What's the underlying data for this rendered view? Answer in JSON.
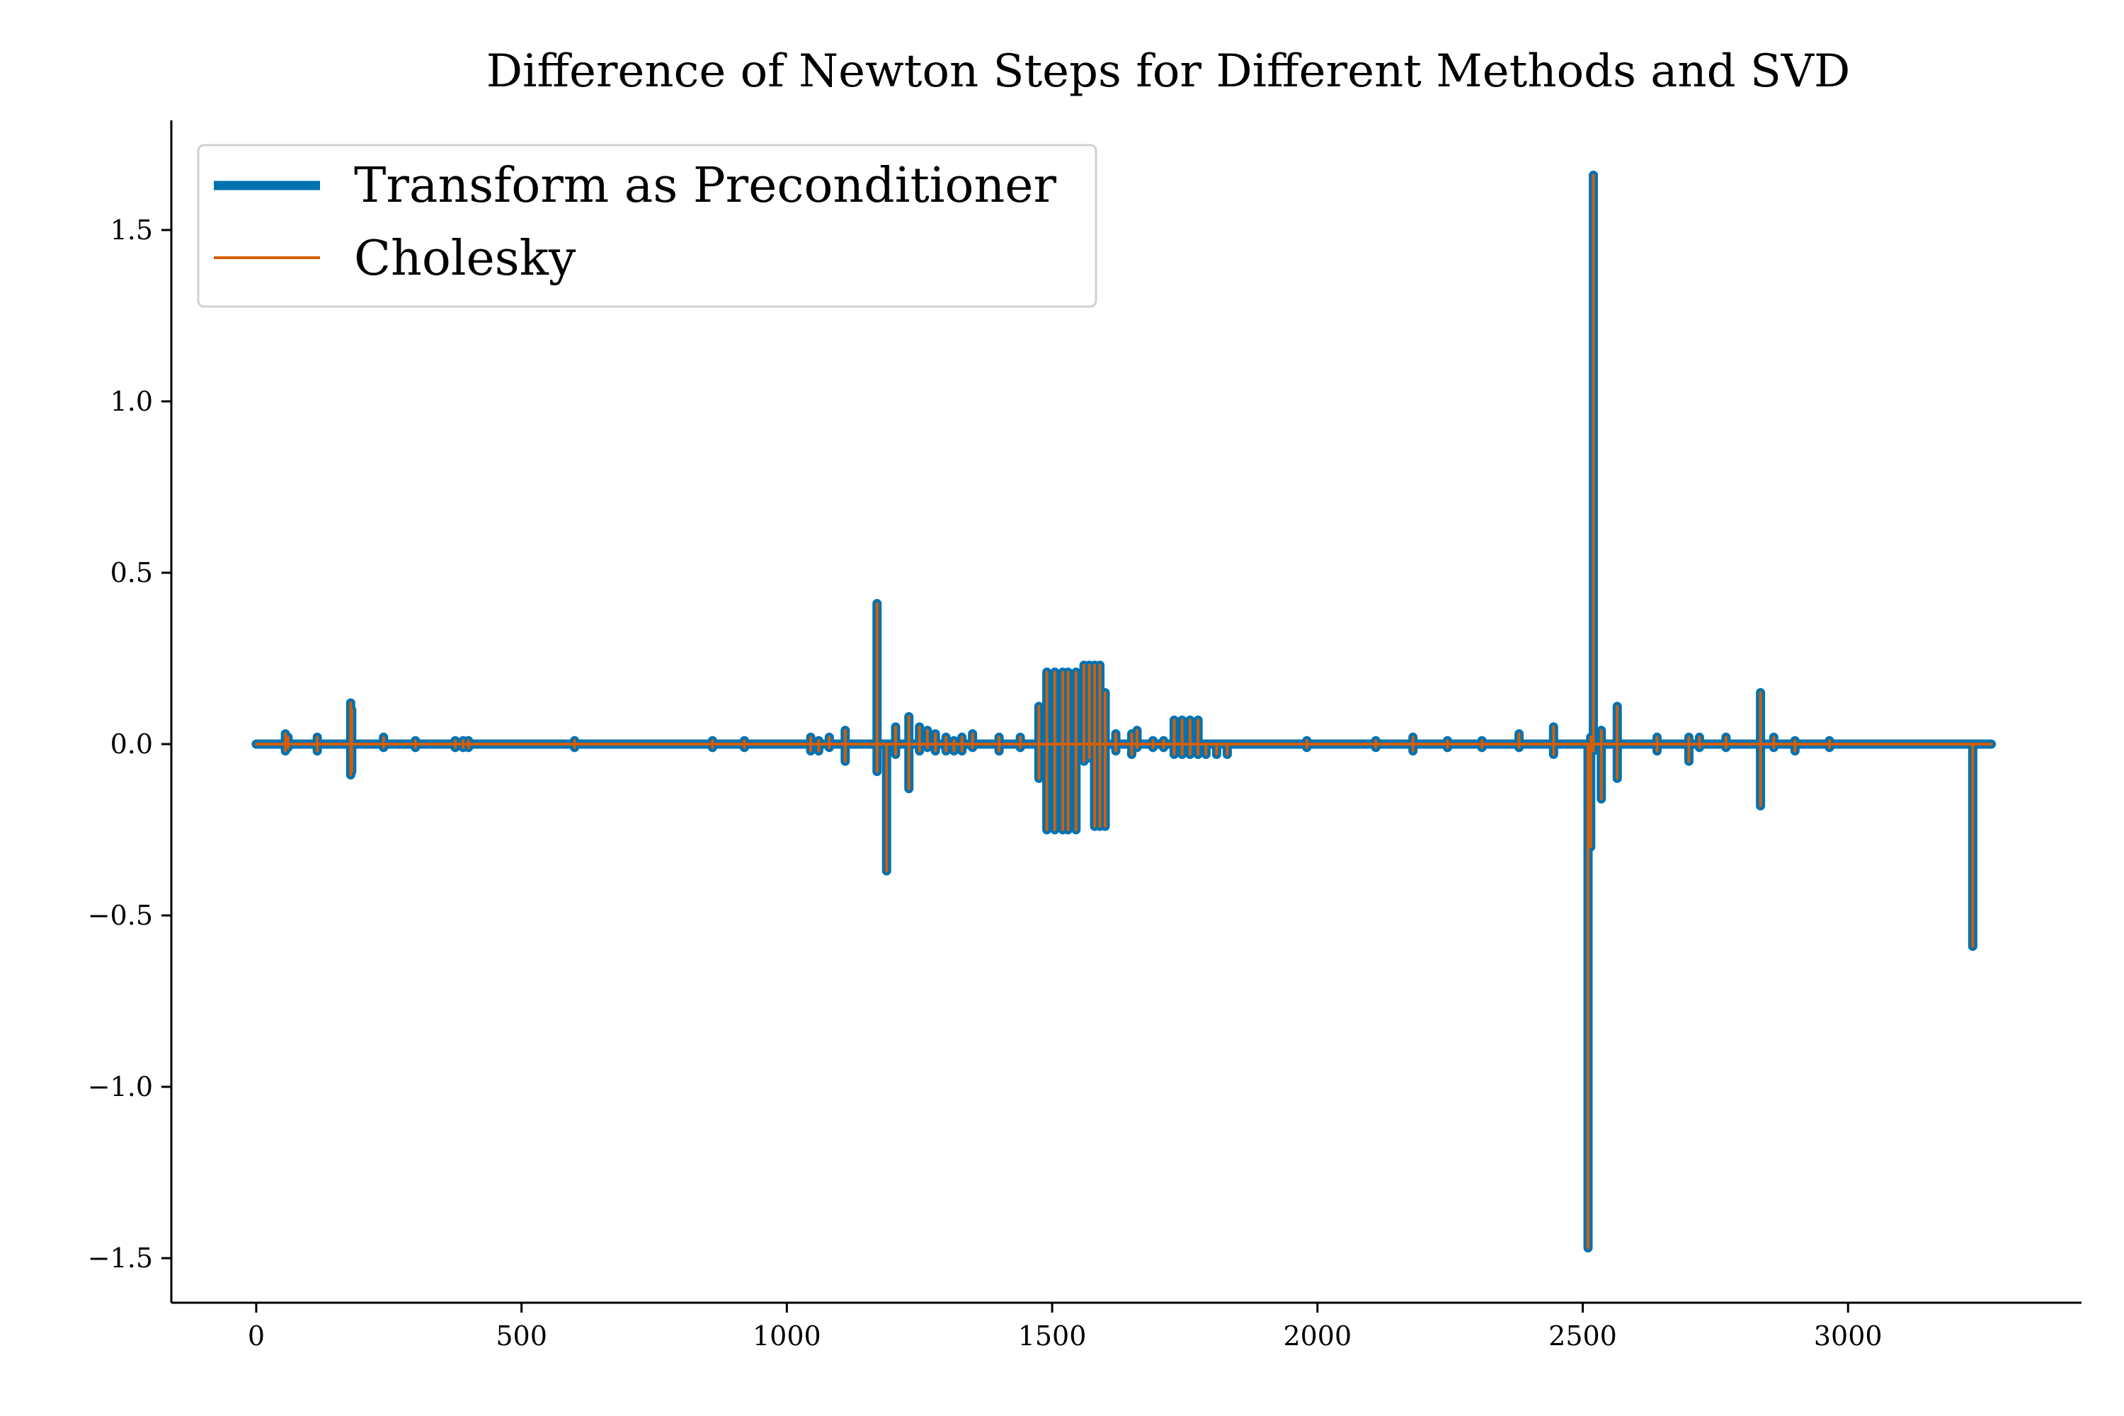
{
  "chart_data": {
    "type": "line",
    "title": "Difference of Newton Steps for Different Methods and SVD",
    "xlabel": "",
    "ylabel": "",
    "xlim": [
      -160,
      3440
    ],
    "ylim": [
      -1.63,
      1.82
    ],
    "xticks": [
      0,
      500,
      1000,
      1500,
      2000,
      2500,
      3000
    ],
    "xtick_labels": [
      "0",
      "500",
      "1000",
      "1500",
      "2000",
      "2500",
      "3000"
    ],
    "yticks": [
      -1.5,
      -1.0,
      -0.5,
      0.0,
      0.5,
      1.0,
      1.5
    ],
    "ytick_labels": [
      "−1.5",
      "−1.0",
      "−0.5",
      "0.0",
      "0.5",
      "1.0",
      "1.5"
    ],
    "grid": false,
    "legend_position": "top-left",
    "x_range": [
      0,
      3270
    ],
    "spikes": [
      [
        55,
        0.03,
        -0.02
      ],
      [
        60,
        0.02,
        -0.01
      ],
      [
        115,
        0.02,
        -0.02
      ],
      [
        178,
        0.12,
        -0.09
      ],
      [
        180,
        0.1,
        -0.08
      ],
      [
        240,
        0.02,
        -0.01
      ],
      [
        300,
        0.01,
        -0.01
      ],
      [
        375,
        0.01,
        -0.01
      ],
      [
        390,
        0.01,
        -0.01
      ],
      [
        400,
        0.01,
        -0.01
      ],
      [
        600,
        0.01,
        -0.01
      ],
      [
        860,
        0.01,
        -0.01
      ],
      [
        920,
        0.01,
        -0.01
      ],
      [
        1045,
        0.02,
        -0.02
      ],
      [
        1060,
        0.01,
        -0.02
      ],
      [
        1080,
        0.02,
        -0.01
      ],
      [
        1110,
        0.04,
        -0.05
      ],
      [
        1170,
        0.41,
        -0.08
      ],
      [
        1188,
        0.0,
        -0.37
      ],
      [
        1205,
        0.05,
        -0.03
      ],
      [
        1230,
        0.08,
        -0.13
      ],
      [
        1250,
        0.05,
        -0.02
      ],
      [
        1265,
        0.04,
        -0.01
      ],
      [
        1280,
        0.03,
        -0.02
      ],
      [
        1300,
        0.02,
        -0.02
      ],
      [
        1315,
        0.01,
        -0.02
      ],
      [
        1330,
        0.02,
        -0.02
      ],
      [
        1350,
        0.03,
        -0.01
      ],
      [
        1400,
        0.02,
        -0.02
      ],
      [
        1440,
        0.02,
        -0.01
      ],
      [
        1475,
        0.11,
        -0.1
      ],
      [
        1490,
        0.21,
        -0.25
      ],
      [
        1505,
        0.21,
        -0.25
      ],
      [
        1520,
        0.21,
        -0.25
      ],
      [
        1530,
        0.21,
        -0.25
      ],
      [
        1545,
        0.21,
        -0.25
      ],
      [
        1560,
        0.23,
        -0.05
      ],
      [
        1570,
        0.23,
        -0.04
      ],
      [
        1580,
        0.23,
        -0.24
      ],
      [
        1590,
        0.23,
        -0.24
      ],
      [
        1600,
        0.15,
        -0.24
      ],
      [
        1620,
        0.03,
        -0.02
      ],
      [
        1650,
        0.03,
        -0.03
      ],
      [
        1660,
        0.04,
        -0.01
      ],
      [
        1690,
        0.01,
        -0.01
      ],
      [
        1710,
        0.01,
        -0.01
      ],
      [
        1730,
        0.07,
        -0.03
      ],
      [
        1745,
        0.07,
        -0.03
      ],
      [
        1760,
        0.07,
        -0.03
      ],
      [
        1775,
        0.07,
        -0.03
      ],
      [
        1790,
        0.0,
        -0.03
      ],
      [
        1810,
        0.0,
        -0.03
      ],
      [
        1830,
        0.0,
        -0.03
      ],
      [
        1980,
        0.01,
        -0.01
      ],
      [
        2110,
        0.01,
        -0.01
      ],
      [
        2180,
        0.02,
        -0.02
      ],
      [
        2245,
        0.01,
        -0.01
      ],
      [
        2310,
        0.01,
        -0.01
      ],
      [
        2380,
        0.03,
        -0.01
      ],
      [
        2445,
        0.05,
        -0.03
      ],
      [
        2510,
        0.0,
        -1.47
      ],
      [
        2515,
        0.02,
        -0.3
      ],
      [
        2520,
        1.66,
        -0.02
      ],
      [
        2535,
        0.04,
        -0.16
      ],
      [
        2565,
        0.11,
        -0.1
      ],
      [
        2640,
        0.02,
        -0.02
      ],
      [
        2700,
        0.02,
        -0.05
      ],
      [
        2720,
        0.02,
        -0.01
      ],
      [
        2770,
        0.02,
        -0.01
      ],
      [
        2835,
        0.15,
        -0.18
      ],
      [
        2860,
        0.02,
        -0.01
      ],
      [
        2900,
        0.01,
        -0.02
      ],
      [
        2965,
        0.01,
        -0.01
      ],
      [
        3235,
        0.0,
        -0.59
      ]
    ],
    "series": [
      {
        "name": "Transform as Preconditioner",
        "color": "#0072b2"
      },
      {
        "name": "Cholesky",
        "color": "#d55e00"
      }
    ]
  }
}
